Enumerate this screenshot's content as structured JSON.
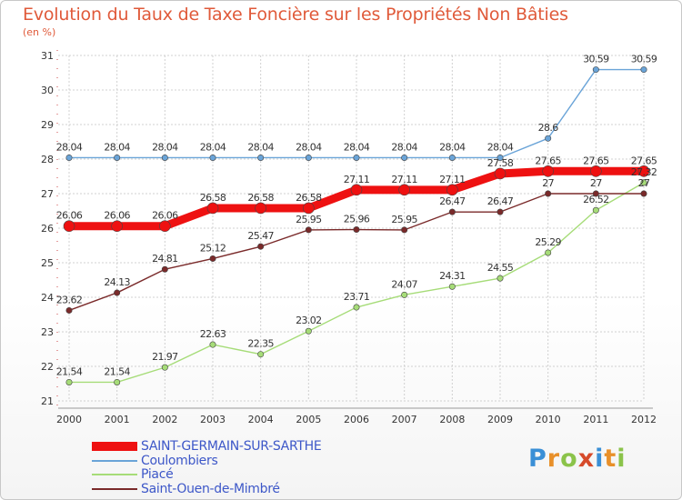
{
  "header": {
    "title": "Evolution du Taux de Taxe Foncière sur les Propriétés Non Bâties",
    "subtitle": "(en %)"
  },
  "logo": {
    "letters": [
      "P",
      "r",
      "o",
      "x",
      "i",
      "t",
      "i"
    ],
    "colors": [
      "#3a8fd6",
      "#e8902a",
      "#8bc34a",
      "#d64a2a",
      "#3a8fd6",
      "#e8902a",
      "#8bc34a"
    ]
  },
  "chart_data": {
    "type": "line",
    "title": "Evolution du Taux de Taxe Foncière sur les Propriétés Non Bâties",
    "ylabel": "(en %)",
    "xlabel": "",
    "ylim": [
      21,
      31
    ],
    "yticks": [
      "21",
      "22",
      "23",
      "24",
      "25",
      "26",
      "27",
      "28",
      "29",
      "30",
      "31"
    ],
    "x": [
      "2000",
      "2001",
      "2002",
      "2003",
      "2004",
      "2005",
      "2006",
      "2007",
      "2008",
      "2009",
      "2010",
      "2011",
      "2012"
    ],
    "grid": true,
    "series": [
      {
        "name": "Coulombiers",
        "color": "#6aa4d8",
        "values": [
          28.04,
          28.04,
          28.04,
          28.04,
          28.04,
          28.04,
          28.04,
          28.04,
          28.04,
          28.04,
          28.6,
          30.59,
          30.59
        ],
        "labels": [
          "28.04",
          "28.04",
          "28.04",
          "28.04",
          "28.04",
          "28.04",
          "28.04",
          "28.04",
          "28.04",
          "28.04",
          "28.6",
          "30.59",
          "30.59"
        ]
      },
      {
        "name": "Piacé",
        "color": "#a6dc78",
        "values": [
          21.54,
          21.54,
          21.97,
          22.63,
          22.35,
          23.02,
          23.71,
          24.07,
          24.31,
          24.55,
          25.29,
          26.52,
          27.32
        ],
        "labels": [
          "21.54",
          "21.54",
          "21.97",
          "22.63",
          "22.35",
          "23.02",
          "23.71",
          "24.07",
          "24.31",
          "24.55",
          "25.29",
          "26.52",
          "27.32"
        ]
      },
      {
        "name": "Saint-Ouen-de-Mimbré",
        "color": "#7a2a2a",
        "values": [
          23.62,
          24.13,
          24.81,
          25.12,
          25.47,
          25.95,
          25.96,
          25.95,
          26.47,
          26.47,
          27,
          27,
          27
        ],
        "labels": [
          "23.62",
          "24.13",
          "24.81",
          "25.12",
          "25.47",
          "25.95",
          "25.96",
          "25.95",
          "26.47",
          "26.47",
          "27",
          "27",
          "27"
        ]
      },
      {
        "name": "SAINT-GERMAIN-SUR-SARTHE",
        "color": "#ee1111",
        "values": [
          26.06,
          26.06,
          26.06,
          26.58,
          26.58,
          26.58,
          27.11,
          27.11,
          27.11,
          27.58,
          27.65,
          27.65,
          27.65
        ],
        "labels": [
          "26.06",
          "26.06",
          "26.06",
          "26.58",
          "26.58",
          "26.58",
          "27.11",
          "27.11",
          "27.11",
          "27.58",
          "27.65",
          "27.65",
          "27.65"
        ]
      }
    ],
    "legend": {
      "placement": "bottom-left",
      "order": [
        "SAINT-GERMAIN-SUR-SARTHE",
        "Coulombiers",
        "Piacé",
        "Saint-Ouen-de-Mimbré"
      ]
    }
  }
}
